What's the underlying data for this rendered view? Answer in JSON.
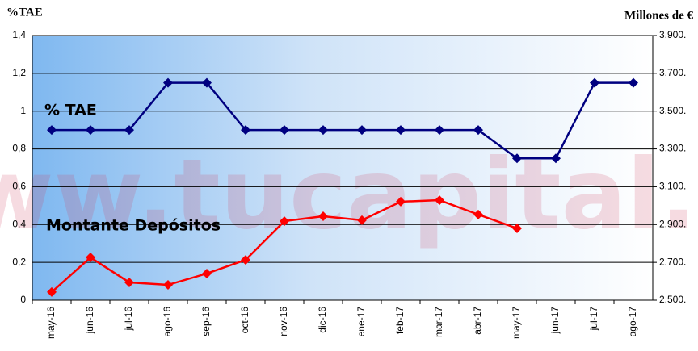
{
  "chart_data": {
    "type": "line",
    "watermark": "www.tucapital.es",
    "y_label": "%TAE",
    "y2_label": "Millones de €",
    "categories": [
      "may-16",
      "jun-16",
      "jul-16",
      "ago-16",
      "sep-16",
      "oct-16",
      "nov-16",
      "dic-16",
      "ene-17",
      "feb-17",
      "mar-17",
      "abr-17",
      "may-17",
      "jun-17",
      "jul-17",
      "ago-17"
    ],
    "series": [
      {
        "name": "% TAE",
        "color": "#000080",
        "values": [
          0.9,
          0.9,
          0.9,
          1.15,
          1.15,
          0.9,
          0.9,
          0.9,
          0.9,
          0.9,
          0.9,
          0.9,
          0.75,
          0.75,
          1.15,
          1.15
        ]
      },
      {
        "name": "Montante Depósitos",
        "color": "#ff0000",
        "axis": "y2",
        "values": [
          2543,
          2726,
          2594,
          2581,
          2641,
          2713,
          2918,
          2944,
          2923,
          3021,
          3029,
          2953,
          2880,
          null,
          null,
          null
        ]
      }
    ],
    "ylim": [
      0,
      1.4
    ],
    "yticks": [
      0,
      {
        "value": 0.2,
        "label": "0,2"
      },
      {
        "value": 0.4,
        "label": "0,4"
      },
      {
        "value": 0.6,
        "label": "0,6"
      },
      {
        "value": 0.8,
        "label": "0,8"
      },
      1,
      {
        "value": 1.2,
        "label": "1,2"
      },
      {
        "value": 1.4,
        "label": "1,4"
      }
    ],
    "y2lim": [
      2500,
      3900
    ],
    "y2ticks": [
      {
        "value": 2500,
        "label": "2.500."
      },
      {
        "value": 2700,
        "label": "2.700."
      },
      {
        "value": 2900,
        "label": "2.900."
      },
      {
        "value": 3100,
        "label": "3.100."
      },
      {
        "value": 3300,
        "label": "3.300."
      },
      {
        "value": 3500,
        "label": "3.500."
      },
      {
        "value": 3700,
        "label": "3.700."
      },
      {
        "value": 3900,
        "label": "3.900."
      }
    ],
    "grid": true
  }
}
